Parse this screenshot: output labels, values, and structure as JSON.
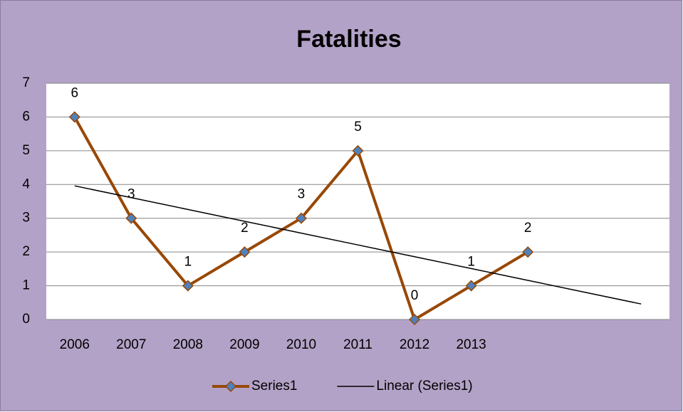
{
  "chart_data": {
    "type": "line",
    "title": "Fatalities",
    "categories": [
      "2006",
      "2007",
      "2008",
      "2009",
      "2010",
      "2011",
      "2012",
      "2013",
      null,
      null,
      null
    ],
    "series": [
      {
        "name": "Series1",
        "color": "#984807",
        "marker_color": "#4f81bd",
        "marker": "diamond",
        "data_labels": true,
        "values": [
          6,
          3,
          1,
          2,
          3,
          5,
          0,
          1,
          2,
          null,
          null
        ]
      },
      {
        "name": "Linear (Series1)",
        "color": "#000000",
        "marker": "none",
        "data_labels": false,
        "values": [
          3.96,
          3.61,
          3.26,
          2.91,
          2.56,
          2.21,
          1.86,
          1.51,
          1.16,
          0.81,
          0.46
        ]
      }
    ],
    "ylim": [
      0,
      7
    ],
    "yticks": [
      0,
      1,
      2,
      3,
      4,
      5,
      6,
      7
    ],
    "grid": true,
    "legend": "bottom",
    "background": "#b3a2c7"
  }
}
